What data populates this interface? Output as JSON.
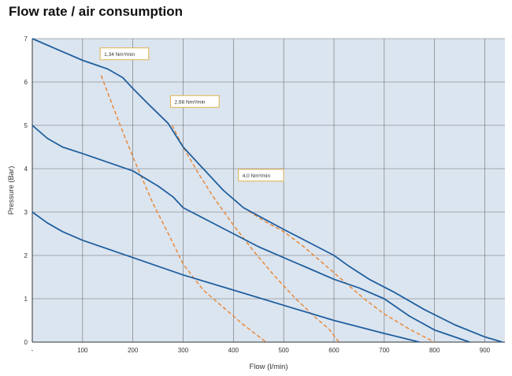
{
  "header": {
    "title": "Flow rate / air consumption"
  },
  "chart_data": {
    "type": "line",
    "title": "Flow rate / air consumption",
    "xlabel": "Flow (l/min)",
    "ylabel": "Pressure (Bar)",
    "xlim": [
      0,
      940
    ],
    "ylim": [
      0,
      7
    ],
    "grid": true,
    "x_ticks": [
      {
        "value": 0,
        "label": "-"
      },
      {
        "value": 100,
        "label": "100"
      },
      {
        "value": 200,
        "label": "200"
      },
      {
        "value": 300,
        "label": "300"
      },
      {
        "value": 400,
        "label": "400"
      },
      {
        "value": 500,
        "label": "500"
      },
      {
        "value": 600,
        "label": "600"
      },
      {
        "value": 700,
        "label": "700"
      },
      {
        "value": 800,
        "label": "800"
      },
      {
        "value": 900,
        "label": "900"
      }
    ],
    "y_ticks": [
      {
        "value": 0,
        "label": "0"
      },
      {
        "value": 1,
        "label": "1"
      },
      {
        "value": 2,
        "label": "2"
      },
      {
        "value": 3,
        "label": "3"
      },
      {
        "value": 4,
        "label": "4"
      },
      {
        "value": 5,
        "label": "5"
      },
      {
        "value": 6,
        "label": "6"
      },
      {
        "value": 7,
        "label": "7"
      }
    ],
    "pressure_curves": [
      {
        "name": "pressure-curve-7-bar",
        "color": "#1f5f9e",
        "points": [
          [
            0,
            7
          ],
          [
            50,
            6.75
          ],
          [
            100,
            6.5
          ],
          [
            150,
            6.3
          ],
          [
            180,
            6.1
          ],
          [
            200,
            5.85
          ],
          [
            230,
            5.5
          ],
          [
            270,
            5.05
          ],
          [
            300,
            4.5
          ],
          [
            340,
            4.0
          ],
          [
            380,
            3.5
          ],
          [
            420,
            3.1
          ],
          [
            460,
            2.85
          ],
          [
            500,
            2.6
          ],
          [
            550,
            2.3
          ],
          [
            600,
            2.0
          ],
          [
            630,
            1.75
          ],
          [
            670,
            1.45
          ],
          [
            720,
            1.15
          ],
          [
            780,
            0.75
          ],
          [
            840,
            0.4
          ],
          [
            900,
            0.12
          ],
          [
            935,
            0
          ]
        ]
      },
      {
        "name": "pressure-curve-5-bar",
        "color": "#1f5f9e",
        "points": [
          [
            0,
            5
          ],
          [
            30,
            4.7
          ],
          [
            60,
            4.5
          ],
          [
            100,
            4.35
          ],
          [
            150,
            4.15
          ],
          [
            200,
            3.95
          ],
          [
            250,
            3.6
          ],
          [
            280,
            3.35
          ],
          [
            300,
            3.1
          ],
          [
            350,
            2.8
          ],
          [
            400,
            2.5
          ],
          [
            450,
            2.2
          ],
          [
            500,
            1.95
          ],
          [
            550,
            1.7
          ],
          [
            600,
            1.45
          ],
          [
            650,
            1.25
          ],
          [
            700,
            1.0
          ],
          [
            750,
            0.6
          ],
          [
            800,
            0.28
          ],
          [
            870,
            0
          ]
        ]
      },
      {
        "name": "pressure-curve-3-bar",
        "color": "#1f5f9e",
        "points": [
          [
            0,
            3
          ],
          [
            30,
            2.75
          ],
          [
            60,
            2.55
          ],
          [
            100,
            2.35
          ],
          [
            200,
            1.95
          ],
          [
            300,
            1.55
          ],
          [
            400,
            1.2
          ],
          [
            500,
            0.85
          ],
          [
            600,
            0.5
          ],
          [
            700,
            0.2
          ],
          [
            770,
            0
          ]
        ]
      }
    ],
    "consumption_curves": [
      {
        "name": "air-consumption-1-34",
        "color": "#e98a3a",
        "points": [
          [
            137,
            6.15
          ],
          [
            160,
            5.45
          ],
          [
            185,
            4.7
          ],
          [
            210,
            4.0
          ],
          [
            240,
            3.2
          ],
          [
            275,
            2.4
          ],
          [
            300,
            1.8
          ],
          [
            340,
            1.2
          ],
          [
            380,
            0.8
          ],
          [
            420,
            0.4
          ],
          [
            465,
            0
          ]
        ]
      },
      {
        "name": "air-consumption-2-68",
        "color": "#e98a3a",
        "points": [
          [
            278,
            5.0
          ],
          [
            300,
            4.5
          ],
          [
            330,
            3.9
          ],
          [
            360,
            3.35
          ],
          [
            400,
            2.7
          ],
          [
            440,
            2.1
          ],
          [
            480,
            1.55
          ],
          [
            520,
            1.05
          ],
          [
            560,
            0.6
          ],
          [
            590,
            0.3
          ],
          [
            610,
            0
          ]
        ]
      },
      {
        "name": "air-consumption-4-0",
        "color": "#e98a3a",
        "points": [
          [
            420,
            3.1
          ],
          [
            460,
            2.8
          ],
          [
            500,
            2.55
          ],
          [
            540,
            2.2
          ],
          [
            580,
            1.8
          ],
          [
            620,
            1.4
          ],
          [
            660,
            1.0
          ],
          [
            700,
            0.65
          ],
          [
            750,
            0.3
          ],
          [
            800,
            0
          ]
        ]
      }
    ],
    "annotations": [
      {
        "name": "label-1-34",
        "text": "1,34 Nm³/min",
        "x": 135,
        "y": 6.65
      },
      {
        "name": "label-2-68",
        "text": "2,68 Nm³/min",
        "x": 275,
        "y": 5.55
      },
      {
        "name": "label-4-0",
        "text": "4,0 Nm³/min",
        "x": 410,
        "y": 3.85
      }
    ]
  }
}
